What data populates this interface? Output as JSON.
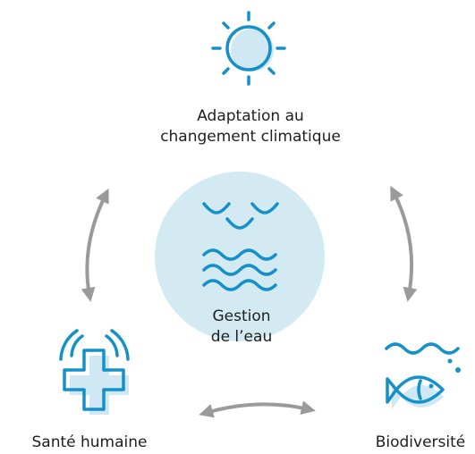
{
  "nodes": [
    {
      "lines": [
        "Adaptation au",
        "changement climatique"
      ]
    },
    {
      "lines": [
        "Gestion",
        "de l’eau"
      ]
    },
    {
      "lines": [
        "Santé humaine"
      ]
    },
    {
      "lines": [
        "Biodiversité"
      ]
    }
  ]
}
